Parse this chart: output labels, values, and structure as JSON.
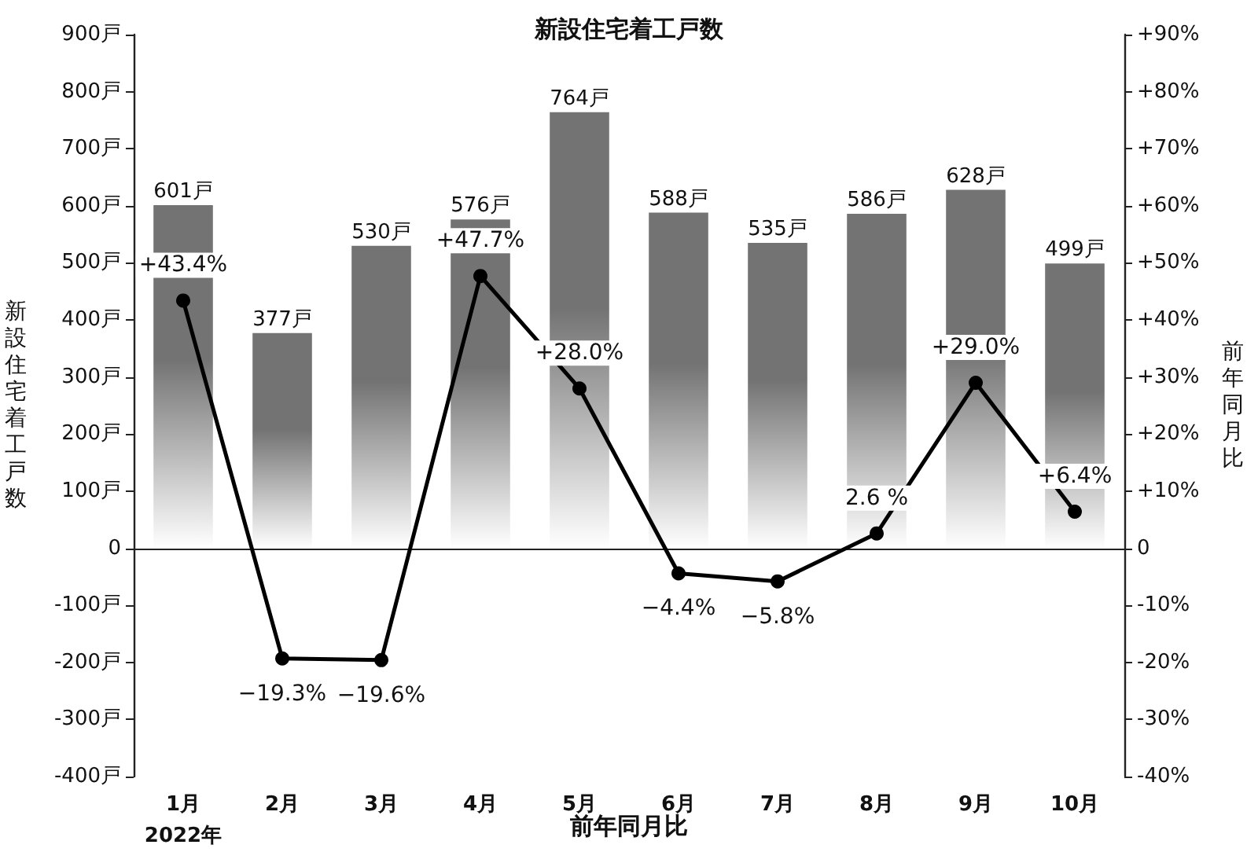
{
  "chart_data": {
    "type": "bar",
    "title": "新設住宅着工戸数",
    "xlabel": "前年同月比",
    "ylabel": "新設住宅着工戸数",
    "y2label": "前年同月比",
    "categories": [
      "1月\n2022年",
      "2月",
      "3月",
      "4月",
      "5月",
      "6月",
      "7月",
      "8月",
      "9月",
      "10月"
    ],
    "series": [
      {
        "color": "#737373",
        "values": [
          601,
          377,
          530,
          576,
          764,
          588,
          535,
          586,
          628,
          499
        ],
        "value_labels": [
          "601戸",
          "377戸",
          "530戸",
          "576戸",
          "764戸",
          "588戸",
          "535戸",
          "586戸",
          "628戸",
          "499戸"
        ]
      },
      {
        "type": "line",
        "axis": "y2",
        "color": "#000000",
        "values": [
          43.4,
          -19.3,
          -19.6,
          47.7,
          28.0,
          -4.4,
          -5.8,
          2.6,
          29.0,
          6.4
        ],
        "value_labels": [
          "+43.4%",
          "−19.3%",
          "−19.6%",
          "+47.7%",
          "+28.0%",
          "−4.4%",
          "−5.8%",
          "2.6 %",
          "+29.0%",
          "+6.4%"
        ]
      }
    ],
    "ylim": [
      -400,
      900
    ],
    "yticks": [
      {
        "value": -400,
        "label": "-400戸"
      },
      {
        "value": -300,
        "label": "-300戸"
      },
      {
        "value": -200,
        "label": "-200戸"
      },
      {
        "value": -100,
        "label": "-100戸"
      },
      {
        "value": 0,
        "label": "0"
      },
      {
        "value": 100,
        "label": "100戸"
      },
      {
        "value": 200,
        "label": "200戸"
      },
      {
        "value": 300,
        "label": "300戸"
      },
      {
        "value": 400,
        "label": "400戸"
      },
      {
        "value": 500,
        "label": "500戸"
      },
      {
        "value": 600,
        "label": "600戸"
      },
      {
        "value": 700,
        "label": "700戸"
      },
      {
        "value": 800,
        "label": "800戸"
      },
      {
        "value": 900,
        "label": "900戸"
      }
    ],
    "y2lim": [
      -40,
      90
    ],
    "y2ticks": [
      {
        "value": -40,
        "label": "-40%"
      },
      {
        "value": -30,
        "label": "-30%"
      },
      {
        "value": -20,
        "label": "-20%"
      },
      {
        "value": -10,
        "label": "-10%"
      },
      {
        "value": 0,
        "label": "0"
      },
      {
        "value": 10,
        "label": "+10%"
      },
      {
        "value": 20,
        "label": "+20%"
      },
      {
        "value": 30,
        "label": "+30%"
      },
      {
        "value": 40,
        "label": "+40%"
      },
      {
        "value": 50,
        "label": "+50%"
      },
      {
        "value": 60,
        "label": "+60%"
      },
      {
        "value": 70,
        "label": "+70%"
      },
      {
        "value": 80,
        "label": "+80%"
      },
      {
        "value": 90,
        "label": "+90%"
      }
    ],
    "marker": "circle",
    "line_style": "solid"
  }
}
